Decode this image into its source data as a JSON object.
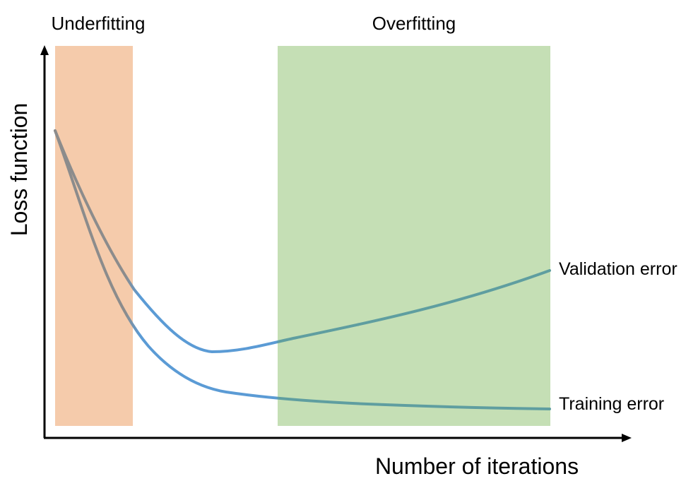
{
  "regions": {
    "underfitting": {
      "label": "Underfitting",
      "color": "#f5cbab"
    },
    "overfitting": {
      "label": "Overfitting",
      "color": "#c5dfb5"
    }
  },
  "axes": {
    "x_label": "Number of iterations",
    "y_label": "Loss function",
    "color": "#000000"
  },
  "curves": {
    "validation": {
      "label": "Validation error"
    },
    "training": {
      "label": "Training error"
    }
  },
  "colors": {
    "curve_blue": "#5b9bd5",
    "curve_gray": "#8c8c8c",
    "curve_teal": "#5f9ea0"
  }
}
